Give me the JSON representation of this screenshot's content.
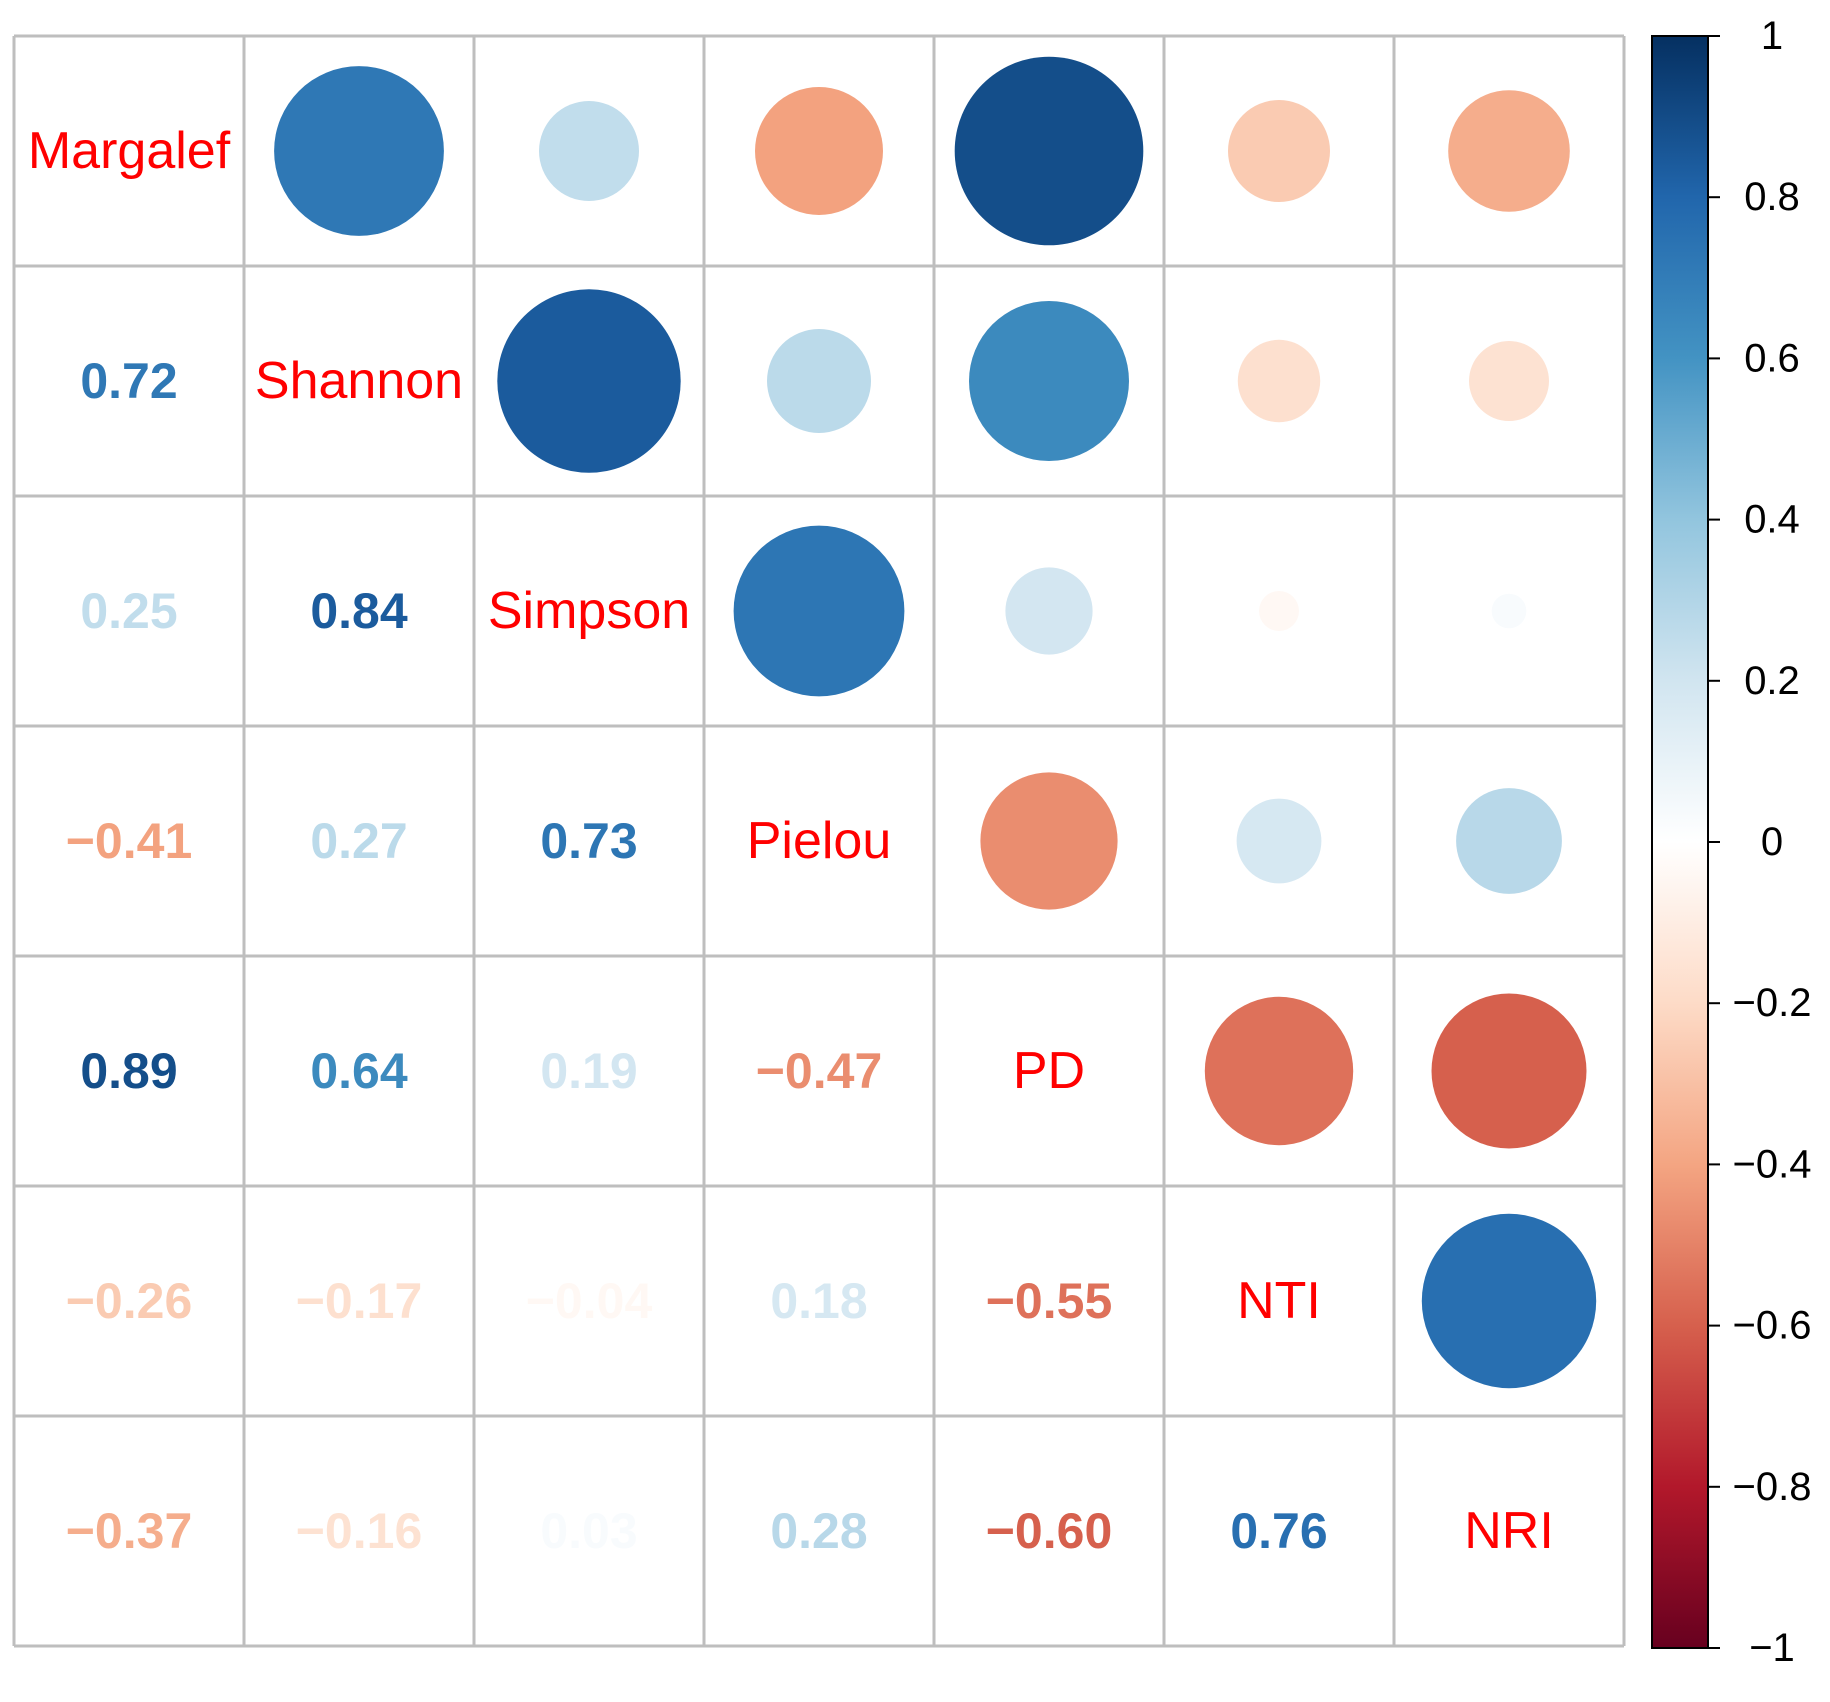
{
  "chart_data": {
    "type": "heatmap",
    "title": "",
    "variables": [
      "Margalef",
      "Shannon",
      "Simpson",
      "Pielou",
      "PD",
      "NTI",
      "NRI"
    ],
    "matrix": [
      [
        1.0,
        0.72,
        0.25,
        -0.41,
        0.89,
        -0.26,
        -0.37
      ],
      [
        0.72,
        1.0,
        0.84,
        0.27,
        0.64,
        -0.17,
        -0.16
      ],
      [
        0.25,
        0.84,
        1.0,
        0.73,
        0.19,
        -0.04,
        0.03
      ],
      [
        -0.41,
        0.27,
        0.73,
        1.0,
        -0.47,
        0.18,
        0.28
      ],
      [
        0.89,
        0.64,
        0.19,
        -0.47,
        1.0,
        -0.55,
        -0.6
      ],
      [
        -0.26,
        -0.17,
        -0.04,
        0.18,
        -0.55,
        1.0,
        0.76
      ],
      [
        -0.37,
        -0.16,
        0.03,
        0.28,
        -0.6,
        0.76,
        1.0
      ]
    ],
    "lower_triangle": "numbers",
    "upper_triangle": "circles",
    "colorbar": {
      "range": [
        -1,
        1
      ],
      "ticks": [
        1,
        0.8,
        0.6,
        0.4,
        0.2,
        0,
        -0.2,
        -0.4,
        -0.6,
        -0.8,
        -1
      ],
      "tick_labels": [
        "1",
        "0.8",
        "0.6",
        "0.4",
        "0.2",
        "0",
        "−0.2",
        "−0.4",
        "−0.6",
        "−0.8",
        "−1"
      ]
    },
    "colors": {
      "diagonal_label": "#ff0000",
      "grid": "#bebebe"
    }
  }
}
